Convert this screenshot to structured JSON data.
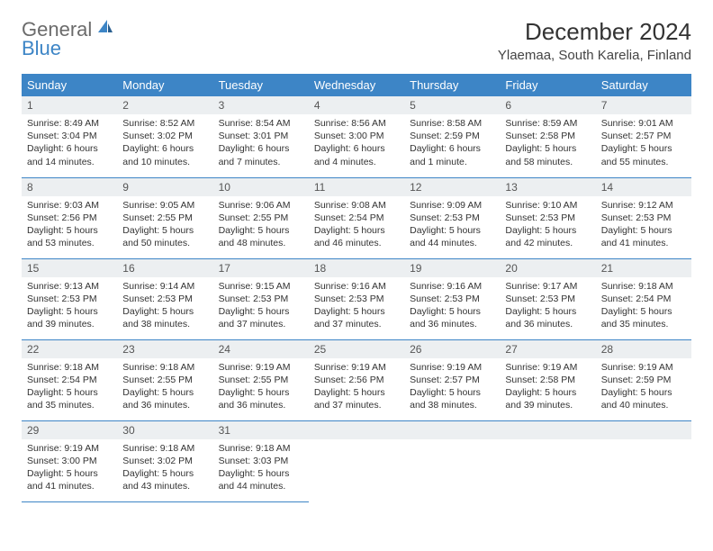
{
  "brand": {
    "general": "General",
    "blue": "Blue"
  },
  "title": "December 2024",
  "location": "Ylaemaa, South Karelia, Finland",
  "colors": {
    "header_bg": "#3d85c6",
    "header_text": "#ffffff",
    "daynum_bg": "#eceff1",
    "border": "#3d85c6",
    "logo_gray": "#6b6b6b",
    "logo_blue": "#3d85c6"
  },
  "weekdays": [
    "Sunday",
    "Monday",
    "Tuesday",
    "Wednesday",
    "Thursday",
    "Friday",
    "Saturday"
  ],
  "days": [
    {
      "n": 1,
      "sunrise": "8:49 AM",
      "sunset": "3:04 PM",
      "daylight": "6 hours and 14 minutes."
    },
    {
      "n": 2,
      "sunrise": "8:52 AM",
      "sunset": "3:02 PM",
      "daylight": "6 hours and 10 minutes."
    },
    {
      "n": 3,
      "sunrise": "8:54 AM",
      "sunset": "3:01 PM",
      "daylight": "6 hours and 7 minutes."
    },
    {
      "n": 4,
      "sunrise": "8:56 AM",
      "sunset": "3:00 PM",
      "daylight": "6 hours and 4 minutes."
    },
    {
      "n": 5,
      "sunrise": "8:58 AM",
      "sunset": "2:59 PM",
      "daylight": "6 hours and 1 minute."
    },
    {
      "n": 6,
      "sunrise": "8:59 AM",
      "sunset": "2:58 PM",
      "daylight": "5 hours and 58 minutes."
    },
    {
      "n": 7,
      "sunrise": "9:01 AM",
      "sunset": "2:57 PM",
      "daylight": "5 hours and 55 minutes."
    },
    {
      "n": 8,
      "sunrise": "9:03 AM",
      "sunset": "2:56 PM",
      "daylight": "5 hours and 53 minutes."
    },
    {
      "n": 9,
      "sunrise": "9:05 AM",
      "sunset": "2:55 PM",
      "daylight": "5 hours and 50 minutes."
    },
    {
      "n": 10,
      "sunrise": "9:06 AM",
      "sunset": "2:55 PM",
      "daylight": "5 hours and 48 minutes."
    },
    {
      "n": 11,
      "sunrise": "9:08 AM",
      "sunset": "2:54 PM",
      "daylight": "5 hours and 46 minutes."
    },
    {
      "n": 12,
      "sunrise": "9:09 AM",
      "sunset": "2:53 PM",
      "daylight": "5 hours and 44 minutes."
    },
    {
      "n": 13,
      "sunrise": "9:10 AM",
      "sunset": "2:53 PM",
      "daylight": "5 hours and 42 minutes."
    },
    {
      "n": 14,
      "sunrise": "9:12 AM",
      "sunset": "2:53 PM",
      "daylight": "5 hours and 41 minutes."
    },
    {
      "n": 15,
      "sunrise": "9:13 AM",
      "sunset": "2:53 PM",
      "daylight": "5 hours and 39 minutes."
    },
    {
      "n": 16,
      "sunrise": "9:14 AM",
      "sunset": "2:53 PM",
      "daylight": "5 hours and 38 minutes."
    },
    {
      "n": 17,
      "sunrise": "9:15 AM",
      "sunset": "2:53 PM",
      "daylight": "5 hours and 37 minutes."
    },
    {
      "n": 18,
      "sunrise": "9:16 AM",
      "sunset": "2:53 PM",
      "daylight": "5 hours and 37 minutes."
    },
    {
      "n": 19,
      "sunrise": "9:16 AM",
      "sunset": "2:53 PM",
      "daylight": "5 hours and 36 minutes."
    },
    {
      "n": 20,
      "sunrise": "9:17 AM",
      "sunset": "2:53 PM",
      "daylight": "5 hours and 36 minutes."
    },
    {
      "n": 21,
      "sunrise": "9:18 AM",
      "sunset": "2:54 PM",
      "daylight": "5 hours and 35 minutes."
    },
    {
      "n": 22,
      "sunrise": "9:18 AM",
      "sunset": "2:54 PM",
      "daylight": "5 hours and 35 minutes."
    },
    {
      "n": 23,
      "sunrise": "9:18 AM",
      "sunset": "2:55 PM",
      "daylight": "5 hours and 36 minutes."
    },
    {
      "n": 24,
      "sunrise": "9:19 AM",
      "sunset": "2:55 PM",
      "daylight": "5 hours and 36 minutes."
    },
    {
      "n": 25,
      "sunrise": "9:19 AM",
      "sunset": "2:56 PM",
      "daylight": "5 hours and 37 minutes."
    },
    {
      "n": 26,
      "sunrise": "9:19 AM",
      "sunset": "2:57 PM",
      "daylight": "5 hours and 38 minutes."
    },
    {
      "n": 27,
      "sunrise": "9:19 AM",
      "sunset": "2:58 PM",
      "daylight": "5 hours and 39 minutes."
    },
    {
      "n": 28,
      "sunrise": "9:19 AM",
      "sunset": "2:59 PM",
      "daylight": "5 hours and 40 minutes."
    },
    {
      "n": 29,
      "sunrise": "9:19 AM",
      "sunset": "3:00 PM",
      "daylight": "5 hours and 41 minutes."
    },
    {
      "n": 30,
      "sunrise": "9:18 AM",
      "sunset": "3:02 PM",
      "daylight": "5 hours and 43 minutes."
    },
    {
      "n": 31,
      "sunrise": "9:18 AM",
      "sunset": "3:03 PM",
      "daylight": "5 hours and 44 minutes."
    }
  ],
  "labels": {
    "sunrise": "Sunrise:",
    "sunset": "Sunset:",
    "daylight": "Daylight:"
  }
}
